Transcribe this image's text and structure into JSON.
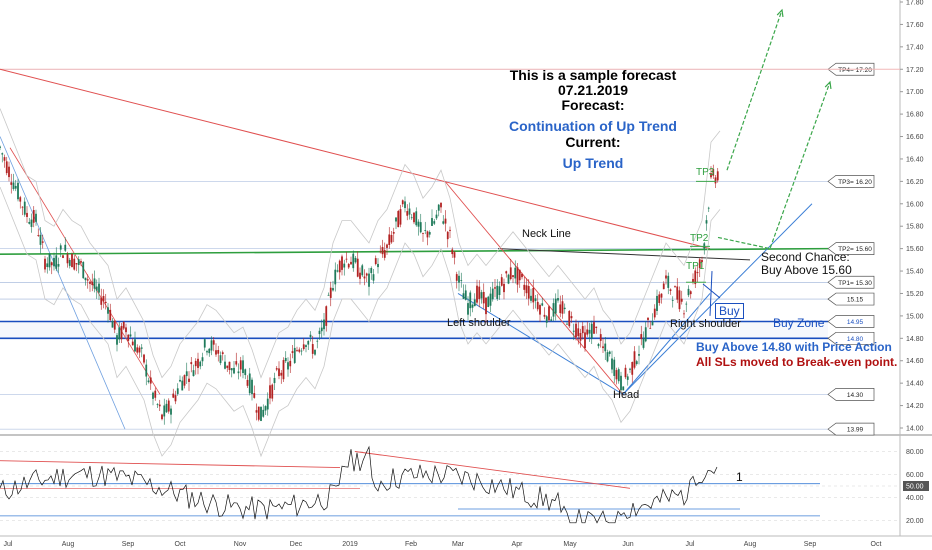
{
  "forecast": {
    "title": "This is a sample forecast",
    "date": "07.21.2019",
    "forecast_label": "Forecast:",
    "forecast_value": "Continuation of Up Trend",
    "current_label": "Current:",
    "current_value": "Up Trend"
  },
  "annotations": {
    "neck_line": "Neck Line",
    "left_shoulder": "Left shoulder",
    "right_shoulder": "Right shoulder",
    "head": "Head",
    "second_chance_1": "Second Chance:",
    "second_chance_2": "Buy Above 15.60",
    "buy_zone": "Buy Zone",
    "buy_box": "Buy",
    "buy_above": "Buy Above 14.80 with Price Action",
    "sl_note": "All SLs moved to Break-even point.",
    "tp1": "TP1",
    "tp2": "TP2",
    "tp3": "TP3",
    "osc_label": "1"
  },
  "chart_data": [
    {
      "type": "candlestick",
      "ylim": [
        14.0,
        17.8
      ],
      "y_ticks": [
        "14.00",
        "14.20",
        "14.40",
        "14.60",
        "14.80",
        "15.00",
        "15.20",
        "15.40",
        "15.60",
        "15.80",
        "16.00",
        "16.20",
        "16.40",
        "16.60",
        "16.80",
        "17.00",
        "17.20",
        "17.40",
        "17.60",
        "17.80"
      ],
      "x_ticks": [
        "Jul",
        "Aug",
        "Sep",
        "Oct",
        "Nov",
        "Dec",
        "2019",
        "Feb",
        "Mar",
        "Apr",
        "May",
        "Jun",
        "Jul",
        "Aug",
        "Sep",
        "Oct"
      ],
      "levels": [
        {
          "label": "TP4= 17.20",
          "value": 17.2
        },
        {
          "label": "TP3= 16.20",
          "value": 16.2
        },
        {
          "label": "TP2= 15.60",
          "value": 15.6
        },
        {
          "label": "TP1= 15.30",
          "value": 15.3
        },
        {
          "label": "15.15",
          "value": 15.15
        },
        {
          "label": "14.95",
          "value": 14.95
        },
        {
          "label": "14.80",
          "value": 14.8
        },
        {
          "label": "14.30",
          "value": 14.3
        },
        {
          "label": "13.99",
          "value": 13.99
        }
      ],
      "close_path": [
        [
          0,
          16.5
        ],
        [
          4,
          16.3
        ],
        [
          8,
          16.1
        ],
        [
          12,
          15.9
        ],
        [
          16,
          15.85
        ],
        [
          20,
          15.5
        ],
        [
          24,
          15.45
        ],
        [
          28,
          15.6
        ],
        [
          32,
          15.5
        ],
        [
          36,
          15.45
        ],
        [
          40,
          15.3
        ],
        [
          44,
          15.2
        ],
        [
          48,
          15.1
        ],
        [
          52,
          14.8
        ],
        [
          56,
          14.9
        ],
        [
          60,
          14.75
        ],
        [
          64,
          14.6
        ],
        [
          68,
          14.3
        ],
        [
          72,
          14.1
        ],
        [
          76,
          14.2
        ],
        [
          80,
          14.4
        ],
        [
          84,
          14.5
        ],
        [
          88,
          14.6
        ],
        [
          92,
          14.75
        ],
        [
          96,
          14.7
        ],
        [
          100,
          14.6
        ],
        [
          104,
          14.5
        ],
        [
          108,
          14.55
        ],
        [
          112,
          14.35
        ],
        [
          116,
          14.1
        ],
        [
          120,
          14.3
        ],
        [
          124,
          14.5
        ],
        [
          128,
          14.55
        ],
        [
          132,
          14.7
        ],
        [
          136,
          14.8
        ],
        [
          140,
          14.7
        ],
        [
          144,
          14.9
        ],
        [
          148,
          15.3
        ],
        [
          152,
          15.5
        ],
        [
          156,
          15.5
        ],
        [
          160,
          15.4
        ],
        [
          164,
          15.3
        ],
        [
          168,
          15.5
        ],
        [
          172,
          15.6
        ],
        [
          176,
          15.8
        ],
        [
          180,
          16.0
        ],
        [
          184,
          15.9
        ],
        [
          188,
          15.7
        ],
        [
          192,
          15.8
        ],
        [
          196,
          15.95
        ],
        [
          200,
          15.7
        ],
        [
          204,
          15.3
        ],
        [
          208,
          15.1
        ],
        [
          212,
          15.2
        ],
        [
          216,
          15.1
        ],
        [
          220,
          15.2
        ],
        [
          224,
          15.3
        ],
        [
          228,
          15.4
        ],
        [
          232,
          15.3
        ],
        [
          236,
          15.2
        ],
        [
          240,
          15.1
        ],
        [
          244,
          15.0
        ],
        [
          248,
          15.1
        ],
        [
          252,
          15.0
        ],
        [
          256,
          14.9
        ],
        [
          260,
          14.8
        ],
        [
          264,
          14.9
        ],
        [
          268,
          14.7
        ],
        [
          272,
          14.6
        ],
        [
          276,
          14.4
        ],
        [
          280,
          14.5
        ],
        [
          284,
          14.7
        ],
        [
          288,
          14.9
        ],
        [
          292,
          15.1
        ],
        [
          296,
          15.3
        ],
        [
          300,
          15.2
        ],
        [
          304,
          15.1
        ],
        [
          308,
          15.3
        ],
        [
          312,
          15.5
        ],
        [
          316,
          16.2
        ],
        [
          320,
          16.3
        ]
      ],
      "candle_colors": {
        "up": "#1f7a5a",
        "down": "#b22222"
      }
    },
    {
      "type": "line",
      "name": "oscillator",
      "ylim": [
        10,
        90
      ],
      "y_ticks": [
        "20.00",
        "40.00",
        "50.00",
        "60.00",
        "80.00"
      ]
    }
  ],
  "colors": {
    "green_line": "#2e9e3e",
    "red_line": "#e05050",
    "blue_zone": "#1a4fbf",
    "arrow_green": "#3aa64a",
    "text_blue": "#2a64c8",
    "text_red": "#b01010"
  }
}
